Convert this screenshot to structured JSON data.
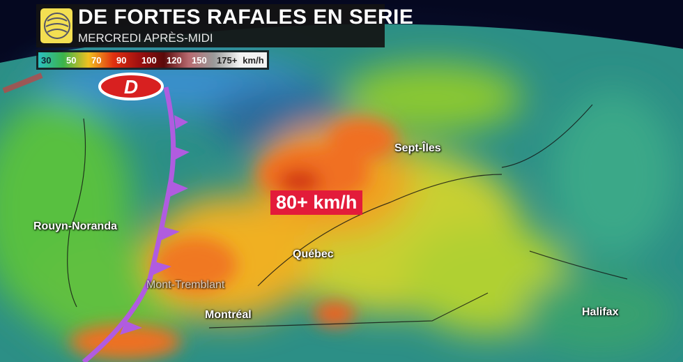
{
  "header": {
    "title": "DE FORTES RAFALES EN SERIE",
    "subtitle": "MERCREDI APRÈS-MIDI",
    "logo_icon": "weather-globe-icon"
  },
  "legend": {
    "items": [
      {
        "label": "30",
        "color": "#2bbfc0",
        "text": "#123"
      },
      {
        "label": "50",
        "color": "#3cb44a",
        "text": "#fff"
      },
      {
        "label": "70",
        "color": "#f0c020",
        "text": "#fff"
      },
      {
        "label": "90",
        "color": "#e03010",
        "text": "#fff"
      },
      {
        "label": "100",
        "color": "#a01010",
        "text": "#fff"
      },
      {
        "label": "120",
        "color": "#5a0a0a",
        "text": "#fff"
      },
      {
        "label": "150",
        "color": "#b86a70",
        "text": "#fff"
      },
      {
        "label": "175+",
        "color": "#9a9a9a",
        "text": "#222"
      },
      {
        "label": "km/h",
        "color": "#f2f2f2",
        "text": "#222"
      }
    ]
  },
  "callout": "80+ km/h",
  "low_pressure_label": "D",
  "cities": [
    {
      "name": "Sept-Îles"
    },
    {
      "name": "Rouyn-Noranda"
    },
    {
      "name": "Québec"
    },
    {
      "name": "Mont-Tremblant"
    },
    {
      "name": "Montréal"
    },
    {
      "name": "Halifax"
    }
  ],
  "colors": {
    "cold_front": "#b05ce0",
    "low": "#d82020"
  }
}
